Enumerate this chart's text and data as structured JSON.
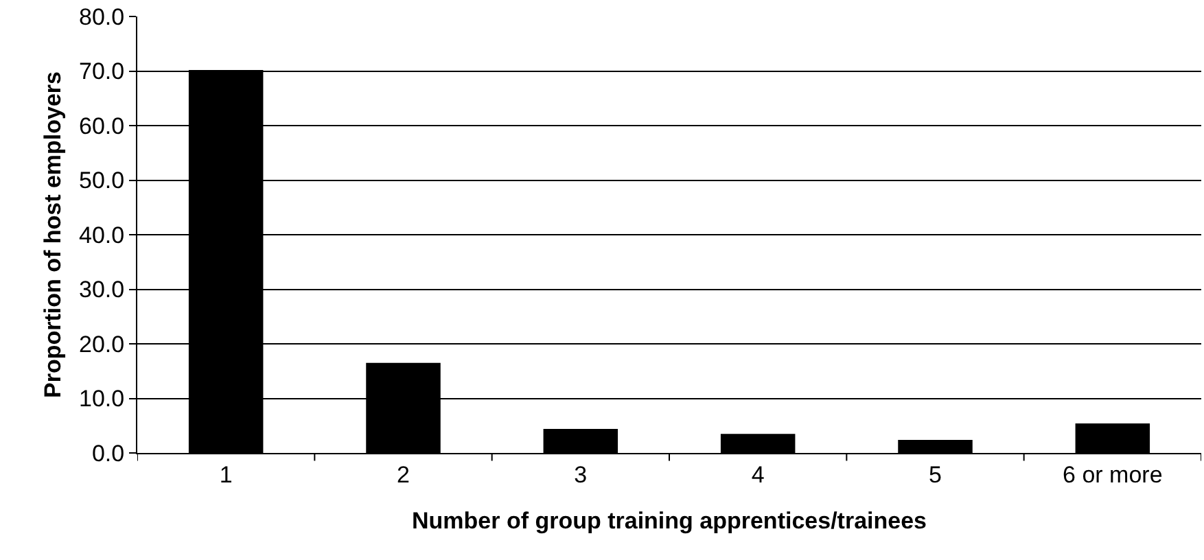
{
  "chart_data": {
    "type": "bar",
    "xlabel": "Number of group training apprentices/trainees",
    "ylabel": "Proportion of host employers",
    "categories": [
      "1",
      "2",
      "3",
      "4",
      "5",
      "6 or more"
    ],
    "values": [
      70.2,
      16.5,
      4.4,
      3.5,
      2.4,
      5.4
    ],
    "color": "#000000",
    "ylim": [
      0,
      80
    ],
    "yticks": [
      {
        "value": 0,
        "label": "0.0"
      },
      {
        "value": 10,
        "label": "10.0"
      },
      {
        "value": 20,
        "label": "20.0"
      },
      {
        "value": 30,
        "label": "30.0"
      },
      {
        "value": 40,
        "label": "40.0"
      },
      {
        "value": 50,
        "label": "50.0"
      },
      {
        "value": 60,
        "label": "60.0"
      },
      {
        "value": 70,
        "label": "70.0"
      },
      {
        "value": 80,
        "label": "80.0"
      }
    ],
    "grid": "y",
    "legend": false
  }
}
